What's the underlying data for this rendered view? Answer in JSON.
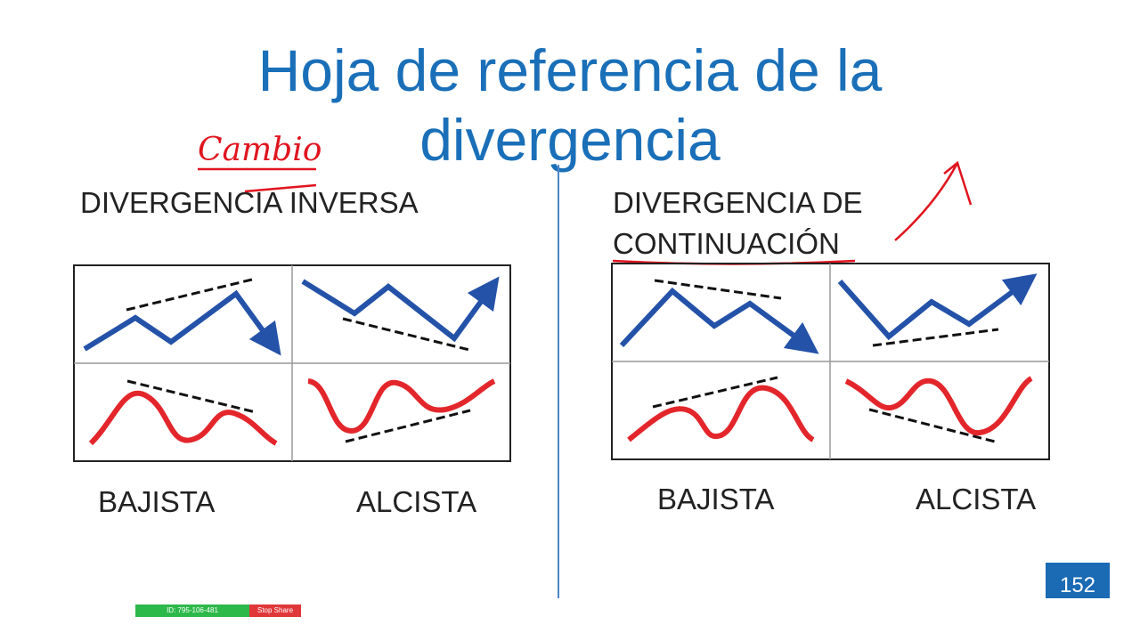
{
  "slide": {
    "title": "Hoja de referencia de la divergencia",
    "handwriting": "Cambio",
    "left": {
      "heading": "DIVERGENCIA INVERSA",
      "labels": [
        "BAJISTA",
        "ALCISTA"
      ]
    },
    "right": {
      "heading": "DIVERGENCIA DE CONTINUACIÓN",
      "labels": [
        "BAJISTA",
        "ALCISTA"
      ]
    },
    "page_number": "152"
  },
  "share_bar": {
    "meeting_id": "ID: 795-106-481",
    "stop_button": "Stop Share"
  }
}
